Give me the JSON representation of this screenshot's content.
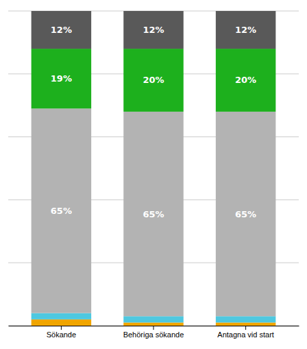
{
  "chart_data": {
    "type": "bar",
    "stacked": true,
    "categories": [
      "Sökande",
      "Behöriga sökande",
      "Antagna vid start"
    ],
    "series": [
      {
        "color": "#f0a500",
        "values": [
          2,
          1,
          1
        ]
      },
      {
        "color": "#4ec8e0",
        "values": [
          2,
          2,
          2
        ]
      },
      {
        "color": "#b3b3b3",
        "values": [
          65,
          65,
          65
        ],
        "value_labels": [
          "65%",
          "65%",
          "65%"
        ]
      },
      {
        "color": "#1db01d",
        "values": [
          19,
          20,
          20
        ],
        "value_labels": [
          "19%",
          "20%",
          "20%"
        ]
      },
      {
        "color": "#595959",
        "values": [
          12,
          12,
          12
        ],
        "value_labels": [
          "12%",
          "12%",
          "12%"
        ]
      }
    ],
    "ylim": [
      0,
      100
    ],
    "yticks": [
      0,
      20,
      40,
      60,
      80,
      100
    ],
    "grid": true,
    "tick_labels": "x"
  }
}
